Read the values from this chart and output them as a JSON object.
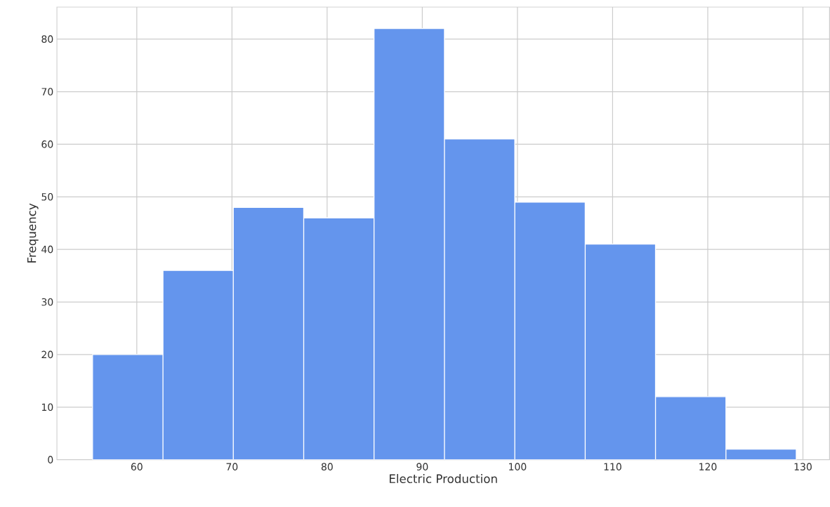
{
  "chart_data": {
    "type": "histogram",
    "xlabel": "Electric Production",
    "ylabel": "Frequency",
    "bins": [
      55.35,
      62.75,
      70.14,
      77.54,
      84.93,
      92.33,
      99.72,
      107.12,
      114.51,
      121.91,
      129.3
    ],
    "values": [
      20,
      36,
      48,
      46,
      82,
      61,
      49,
      41,
      12,
      2
    ],
    "color": "#6495ed",
    "xlim": [
      51.6,
      132.8
    ],
    "ylim": [
      0,
      86.1
    ],
    "xticks": [
      60,
      70,
      80,
      90,
      100,
      110,
      120,
      130
    ],
    "yticks": [
      0,
      10,
      20,
      30,
      40,
      50,
      60,
      70,
      80
    ],
    "grid": true
  }
}
